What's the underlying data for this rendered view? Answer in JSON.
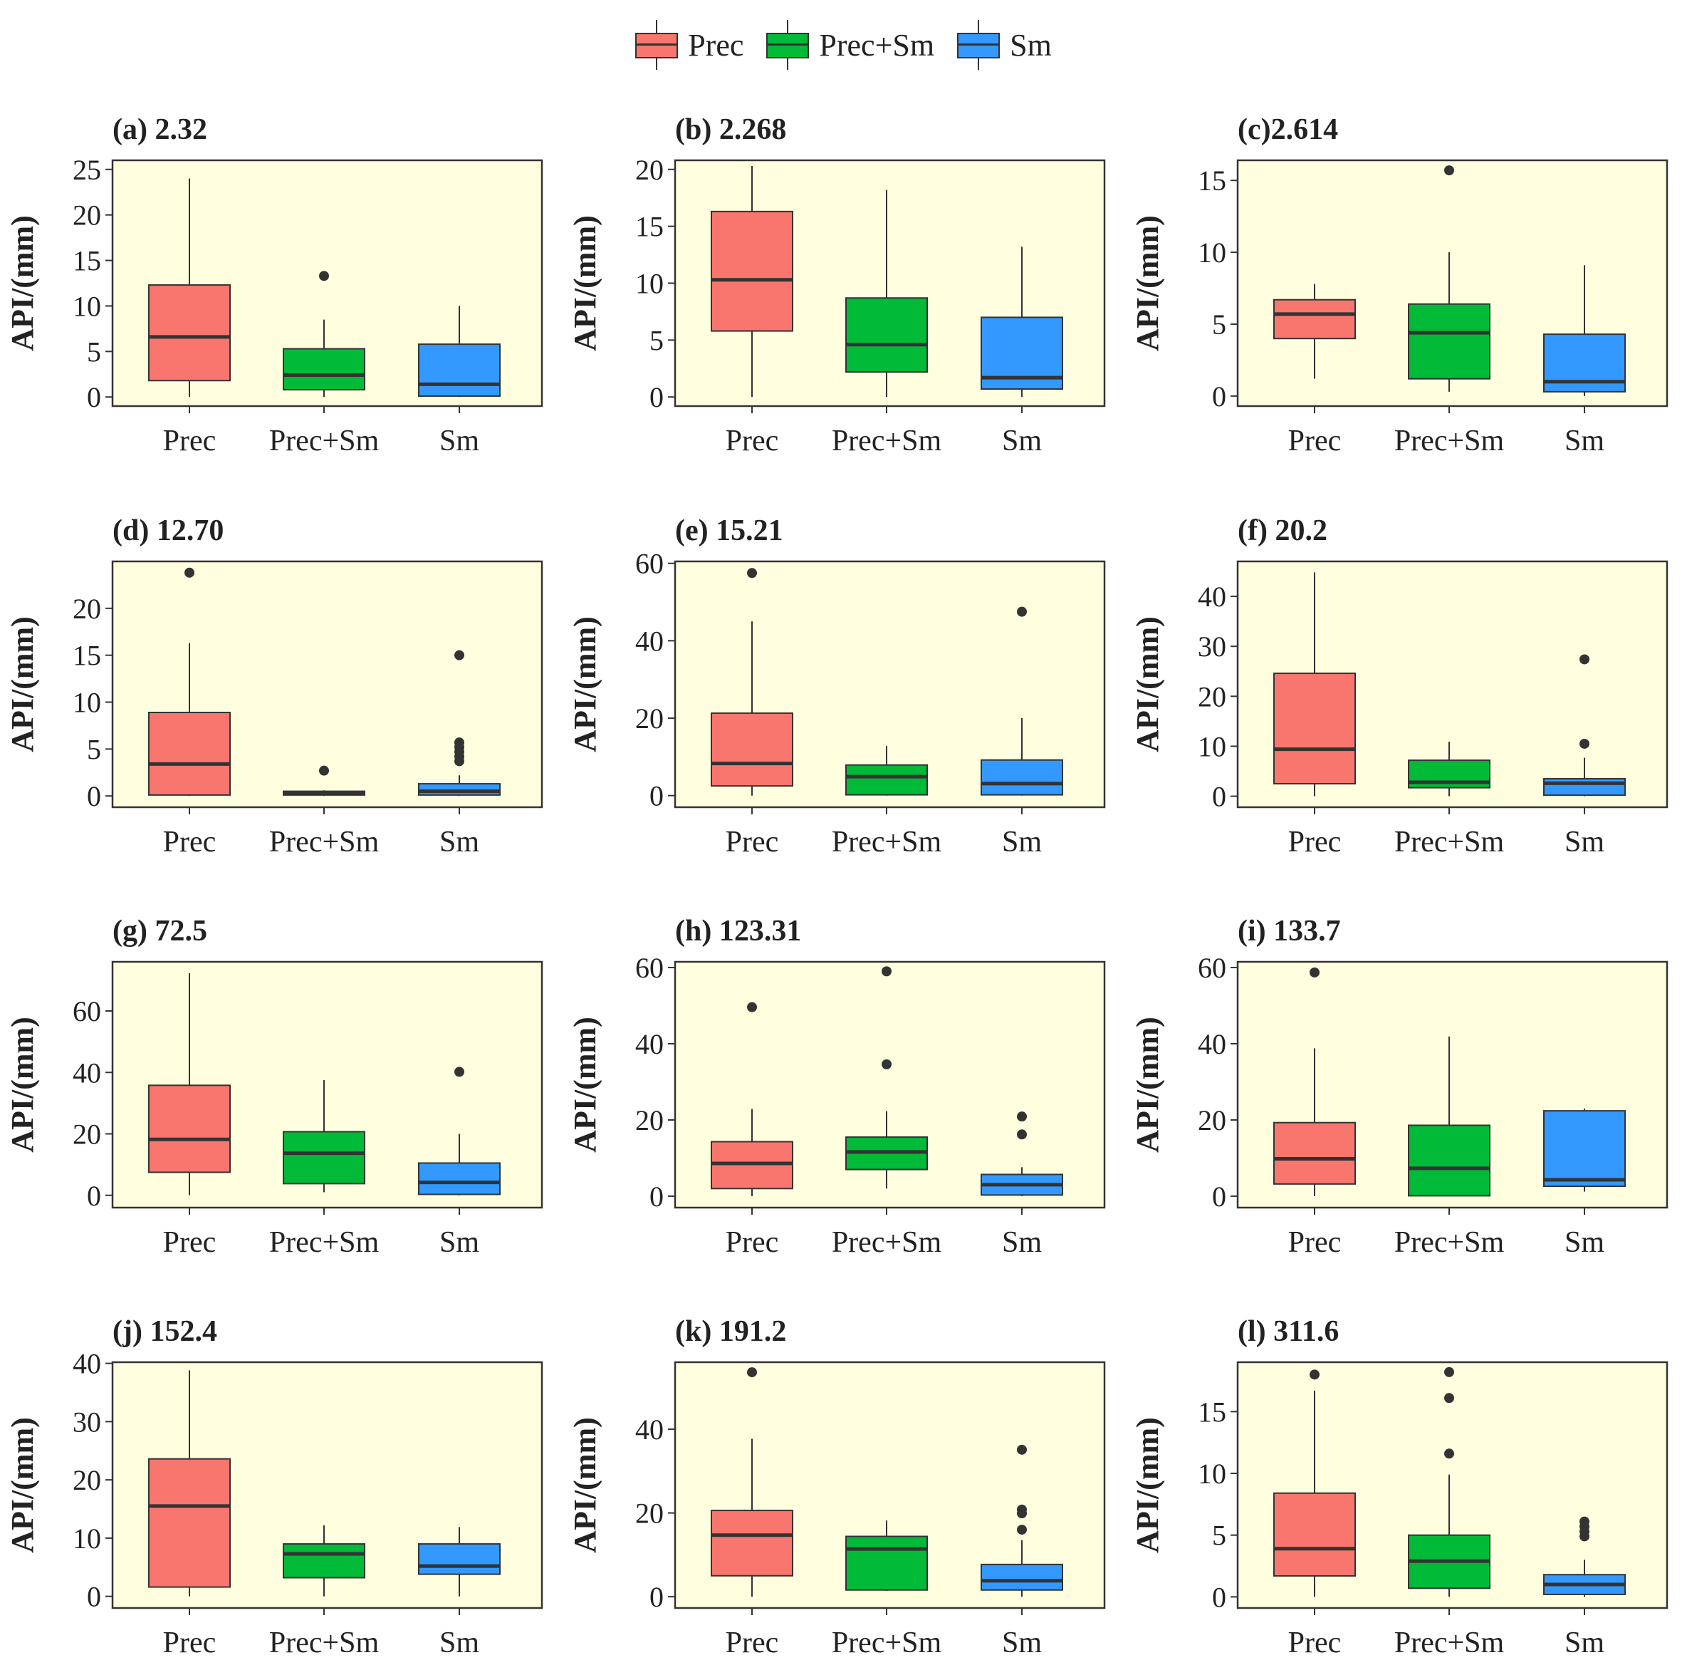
{
  "legend": [
    {
      "label": "Prec",
      "color": "#F8766D"
    },
    {
      "label": "Prec+Sm",
      "color": "#00BA38"
    },
    {
      "label": "Sm",
      "color": "#3399FF"
    }
  ],
  "colors": {
    "panel_bg": "#FFFFE0",
    "line": "#333333",
    "text": "#222222"
  },
  "chart_data": [
    {
      "type": "boxplot",
      "title": "(a) 2.32",
      "ylabel": "API/(mm)",
      "ylim": [
        -1,
        26
      ],
      "yticks": [
        0,
        5,
        10,
        15,
        20,
        25
      ],
      "categories": [
        "Prec",
        "Prec+Sm",
        "Sm"
      ],
      "series": [
        {
          "name": "Prec",
          "min": 0,
          "q1": 1.8,
          "median": 6.6,
          "q3": 12.3,
          "max": 24,
          "outliers": []
        },
        {
          "name": "Prec+Sm",
          "min": 0,
          "q1": 0.8,
          "median": 2.4,
          "q3": 5.3,
          "max": 8.5,
          "outliers": [
            13.3
          ]
        },
        {
          "name": "Sm",
          "min": 0,
          "q1": 0.1,
          "median": 1.4,
          "q3": 5.8,
          "max": 10,
          "outliers": []
        }
      ]
    },
    {
      "type": "boxplot",
      "title": "(b) 2.268",
      "ylabel": "API/(mm)",
      "ylim": [
        -0.8,
        20.8
      ],
      "yticks": [
        0,
        5,
        10,
        15,
        20
      ],
      "categories": [
        "Prec",
        "Prec+Sm",
        "Sm"
      ],
      "series": [
        {
          "name": "Prec",
          "min": 0,
          "q1": 5.8,
          "median": 10.3,
          "q3": 16.3,
          "max": 20.3,
          "outliers": []
        },
        {
          "name": "Prec+Sm",
          "min": 0,
          "q1": 2.2,
          "median": 4.6,
          "q3": 8.7,
          "max": 18.2,
          "outliers": []
        },
        {
          "name": "Sm",
          "min": 0,
          "q1": 0.7,
          "median": 1.7,
          "q3": 7.0,
          "max": 13.2,
          "outliers": []
        }
      ]
    },
    {
      "type": "boxplot",
      "title": "(c)2.614",
      "ylabel": "API/(mm)",
      "ylim": [
        -0.7,
        16.4
      ],
      "yticks": [
        0,
        5,
        10,
        15
      ],
      "categories": [
        "Prec",
        "Prec+Sm",
        "Sm"
      ],
      "series": [
        {
          "name": "Prec",
          "min": 1.2,
          "q1": 4.0,
          "median": 5.7,
          "q3": 6.7,
          "max": 7.8,
          "outliers": []
        },
        {
          "name": "Prec+Sm",
          "min": 0.3,
          "q1": 1.2,
          "median": 4.4,
          "q3": 6.4,
          "max": 10.0,
          "outliers": [
            15.7
          ]
        },
        {
          "name": "Sm",
          "min": 0,
          "q1": 0.3,
          "median": 1.0,
          "q3": 4.3,
          "max": 9.1,
          "outliers": []
        }
      ]
    },
    {
      "type": "boxplot",
      "title": "(d) 12.70",
      "ylabel": "API/(mm)",
      "ylim": [
        -1.2,
        25
      ],
      "yticks": [
        0,
        5,
        10,
        15,
        20
      ],
      "categories": [
        "Prec",
        "Prec+Sm",
        "Sm"
      ],
      "series": [
        {
          "name": "Prec",
          "min": 0,
          "q1": 0.1,
          "median": 3.4,
          "q3": 8.9,
          "max": 16.3,
          "outliers": [
            23.8
          ]
        },
        {
          "name": "Prec+Sm",
          "min": 0,
          "q1": 0.1,
          "median": 0.3,
          "q3": 0.5,
          "max": 0.6,
          "outliers": [
            2.7
          ]
        },
        {
          "name": "Sm",
          "min": 0,
          "q1": 0.1,
          "median": 0.5,
          "q3": 1.3,
          "max": 2.2,
          "outliers": [
            3.7,
            4.2,
            4.7,
            5.2,
            5.7,
            15.0
          ]
        }
      ]
    },
    {
      "type": "boxplot",
      "title": "(e) 15.21",
      "ylabel": "API/(mm)",
      "ylim": [
        -3,
        60.5
      ],
      "yticks": [
        0,
        20,
        40,
        60
      ],
      "categories": [
        "Prec",
        "Prec+Sm",
        "Sm"
      ],
      "series": [
        {
          "name": "Prec",
          "min": 0,
          "q1": 2.5,
          "median": 8.3,
          "q3": 21.3,
          "max": 45.0,
          "outliers": [
            57.5
          ]
        },
        {
          "name": "Prec+Sm",
          "min": 0,
          "q1": 0.2,
          "median": 4.9,
          "q3": 7.9,
          "max": 12.8,
          "outliers": []
        },
        {
          "name": "Sm",
          "min": 0,
          "q1": 0.2,
          "median": 3.1,
          "q3": 9.2,
          "max": 20.0,
          "outliers": [
            47.5
          ]
        }
      ]
    },
    {
      "type": "boxplot",
      "title": "(f) 20.2",
      "ylabel": "API/(mm)",
      "ylim": [
        -2.2,
        47
      ],
      "yticks": [
        0,
        10,
        20,
        30,
        40
      ],
      "categories": [
        "Prec",
        "Prec+Sm",
        "Sm"
      ],
      "series": [
        {
          "name": "Prec",
          "min": 0,
          "q1": 2.5,
          "median": 9.4,
          "q3": 24.6,
          "max": 44.8,
          "outliers": []
        },
        {
          "name": "Prec+Sm",
          "min": 0,
          "q1": 1.7,
          "median": 2.8,
          "q3": 7.2,
          "max": 10.9,
          "outliers": []
        },
        {
          "name": "Sm",
          "min": 0,
          "q1": 0.2,
          "median": 2.6,
          "q3": 3.5,
          "max": 7.7,
          "outliers": [
            10.5,
            27.4
          ]
        }
      ]
    },
    {
      "type": "boxplot",
      "title": "(g) 72.5",
      "ylabel": "API/(mm)",
      "ylim": [
        -4,
        76
      ],
      "yticks": [
        0,
        20,
        40,
        60
      ],
      "categories": [
        "Prec",
        "Prec+Sm",
        "Sm"
      ],
      "series": [
        {
          "name": "Prec",
          "min": 0,
          "q1": 7.5,
          "median": 18.2,
          "q3": 35.8,
          "max": 72.3,
          "outliers": []
        },
        {
          "name": "Prec+Sm",
          "min": 1.0,
          "q1": 3.8,
          "median": 13.7,
          "q3": 20.7,
          "max": 37.5,
          "outliers": []
        },
        {
          "name": "Sm",
          "min": 0,
          "q1": 0.3,
          "median": 4.2,
          "q3": 10.5,
          "max": 20.0,
          "outliers": [
            40.2
          ]
        }
      ]
    },
    {
      "type": "boxplot",
      "title": "(h) 123.31",
      "ylabel": "API/(mm)",
      "ylim": [
        -3,
        61.5
      ],
      "yticks": [
        0,
        20,
        40,
        60
      ],
      "categories": [
        "Prec",
        "Prec+Sm",
        "Sm"
      ],
      "series": [
        {
          "name": "Prec",
          "min": 0,
          "q1": 2.0,
          "median": 8.6,
          "q3": 14.3,
          "max": 22.9,
          "outliers": [
            49.6
          ]
        },
        {
          "name": "Prec+Sm",
          "min": 2.0,
          "q1": 7.0,
          "median": 11.6,
          "q3": 15.5,
          "max": 22.3,
          "outliers": [
            34.6,
            59.0
          ]
        },
        {
          "name": "Sm",
          "min": 0,
          "q1": 0.3,
          "median": 3.0,
          "q3": 5.7,
          "max": 7.6,
          "outliers": [
            16.2,
            20.9
          ]
        }
      ]
    },
    {
      "type": "boxplot",
      "title": "(i) 133.7",
      "ylabel": "API/(mm)",
      "ylim": [
        -3,
        61.5
      ],
      "yticks": [
        0,
        20,
        40,
        60
      ],
      "categories": [
        "Prec",
        "Prec+Sm",
        "Sm"
      ],
      "series": [
        {
          "name": "Prec",
          "min": 0,
          "q1": 3.2,
          "median": 9.8,
          "q3": 19.3,
          "max": 38.8,
          "outliers": [
            58.7
          ]
        },
        {
          "name": "Prec+Sm",
          "min": 0,
          "q1": 0.1,
          "median": 7.3,
          "q3": 18.6,
          "max": 41.9,
          "outliers": []
        },
        {
          "name": "Sm",
          "min": 1.2,
          "q1": 2.6,
          "median": 4.3,
          "q3": 22.4,
          "max": 23.0,
          "outliers": []
        }
      ]
    },
    {
      "type": "boxplot",
      "title": "(j) 152.4",
      "ylabel": "API/(mm)",
      "ylim": [
        -2,
        40.2
      ],
      "yticks": [
        0,
        10,
        20,
        30,
        40
      ],
      "categories": [
        "Prec",
        "Prec+Sm",
        "Sm"
      ],
      "series": [
        {
          "name": "Prec",
          "min": 0,
          "q1": 1.6,
          "median": 15.5,
          "q3": 23.6,
          "max": 38.8,
          "outliers": []
        },
        {
          "name": "Prec+Sm",
          "min": 0,
          "q1": 3.2,
          "median": 7.3,
          "q3": 9.0,
          "max": 12.2,
          "outliers": []
        },
        {
          "name": "Sm",
          "min": 0,
          "q1": 3.8,
          "median": 5.2,
          "q3": 9.0,
          "max": 11.9,
          "outliers": []
        }
      ]
    },
    {
      "type": "boxplot",
      "title": "(k) 191.2",
      "ylabel": "API/(mm)",
      "ylim": [
        -2.7,
        56
      ],
      "yticks": [
        0,
        20,
        40
      ],
      "categories": [
        "Prec",
        "Prec+Sm",
        "Sm"
      ],
      "series": [
        {
          "name": "Prec",
          "min": 0,
          "q1": 5.0,
          "median": 14.7,
          "q3": 20.6,
          "max": 37.7,
          "outliers": [
            53.6
          ]
        },
        {
          "name": "Prec+Sm",
          "min": 1.4,
          "q1": 1.6,
          "median": 11.4,
          "q3": 14.4,
          "max": 18.2,
          "outliers": []
        },
        {
          "name": "Sm",
          "min": 0,
          "q1": 1.6,
          "median": 3.8,
          "q3": 7.7,
          "max": 13.5,
          "outliers": [
            16.0,
            19.9,
            20.8,
            35.1
          ]
        }
      ]
    },
    {
      "type": "boxplot",
      "title": "(l) 311.6",
      "ylabel": "API/(mm)",
      "ylim": [
        -0.9,
        19
      ],
      "yticks": [
        0,
        5,
        10,
        15
      ],
      "categories": [
        "Prec",
        "Prec+Sm",
        "Sm"
      ],
      "series": [
        {
          "name": "Prec",
          "min": 0,
          "q1": 1.7,
          "median": 3.9,
          "q3": 8.4,
          "max": 16.7,
          "outliers": [
            18.0
          ]
        },
        {
          "name": "Prec+Sm",
          "min": 0,
          "q1": 0.7,
          "median": 2.9,
          "q3": 5.0,
          "max": 9.9,
          "outliers": [
            11.6,
            16.1,
            18.2
          ]
        },
        {
          "name": "Sm",
          "min": 0,
          "q1": 0.2,
          "median": 1.0,
          "q3": 1.8,
          "max": 3.0,
          "outliers": [
            4.9,
            5.3,
            5.7,
            6.1
          ]
        }
      ]
    }
  ]
}
